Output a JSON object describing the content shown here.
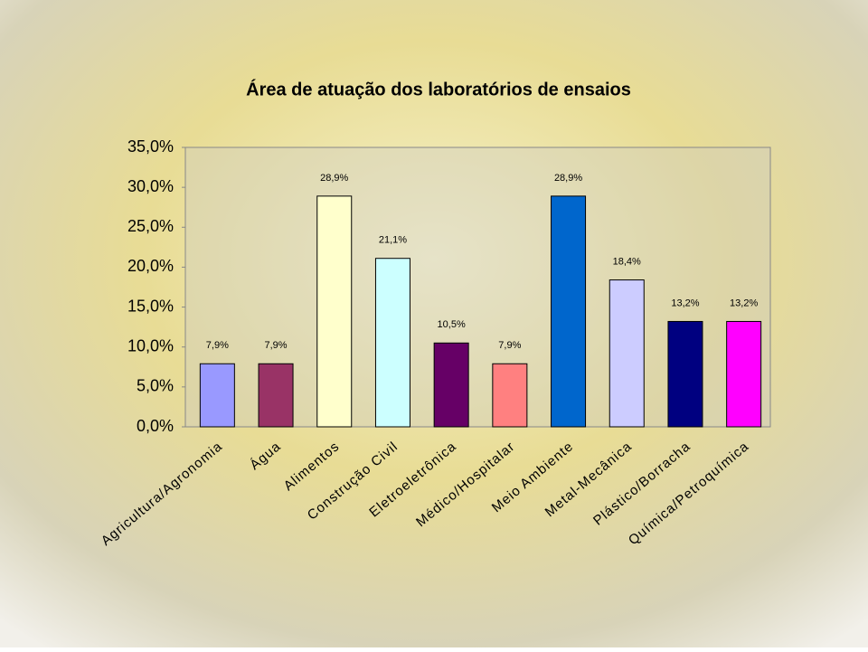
{
  "chart_data": {
    "type": "bar",
    "title": "Área de atuação dos laboratórios de ensaios",
    "categories": [
      "Agricultura/Agronomia",
      "Água",
      "Alimentos",
      "Construção Civil",
      "Eletroeletrônica",
      "Médico/Hospitalar",
      "Meio Ambiente",
      "Metal-Mecânica",
      "Plástico/Borracha",
      "Química/Petroquímica"
    ],
    "values": [
      7.9,
      7.9,
      28.9,
      21.1,
      10.5,
      7.9,
      28.9,
      18.4,
      13.2,
      13.2
    ],
    "value_labels": [
      "7,9%",
      "7,9%",
      "28,9%",
      "21,1%",
      "10,5%",
      "7,9%",
      "28,9%",
      "18,4%",
      "13,2%",
      "13,2%"
    ],
    "colors": [
      "#9999ff",
      "#993366",
      "#ffffcc",
      "#ccffff",
      "#660066",
      "#ff8080",
      "#0066cc",
      "#ccccff",
      "#000080",
      "#ff00ff"
    ],
    "ylim": [
      0,
      35
    ],
    "yticks": [
      {
        "value": 0,
        "label": "0,0%"
      },
      {
        "value": 5,
        "label": "5,0%"
      },
      {
        "value": 10,
        "label": "10,0%"
      },
      {
        "value": 15,
        "label": "15,0%"
      },
      {
        "value": 20,
        "label": "20,0%"
      },
      {
        "value": 25,
        "label": "25,0%"
      },
      {
        "value": 30,
        "label": "30,0%"
      },
      {
        "value": 35,
        "label": "35,0%"
      }
    ]
  }
}
